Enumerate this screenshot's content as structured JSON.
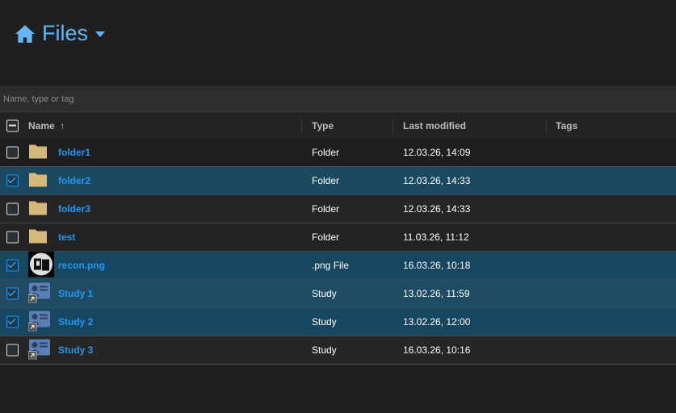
{
  "header": {
    "title": "Files",
    "icon": "home-icon"
  },
  "search": {
    "placeholder": "Name, type or tag"
  },
  "columns": {
    "name": "Name",
    "sort": "↑",
    "type": "Type",
    "modified": "Last modified",
    "tags": "Tags"
  },
  "rows": [
    {
      "name": "folder1",
      "type": "Folder",
      "modified": "12.03.26, 14:09",
      "icon": "folder",
      "selected": false
    },
    {
      "name": "folder2",
      "type": "Folder",
      "modified": "12.03.26, 14:33",
      "icon": "folder",
      "selected": true
    },
    {
      "name": "folder3",
      "type": "Folder",
      "modified": "12.03.26, 14:33",
      "icon": "folder",
      "selected": false
    },
    {
      "name": "test",
      "type": "Folder",
      "modified": "11.03.26, 11:12",
      "icon": "folder",
      "selected": false
    },
    {
      "name": "recon.png",
      "type": ".png File",
      "modified": "16.03.26, 10:18",
      "icon": "image",
      "selected": true
    },
    {
      "name": "Study 1",
      "type": "Study",
      "modified": "13.02.26, 11:59",
      "icon": "study",
      "selected": true
    },
    {
      "name": "Study 2",
      "type": "Study",
      "modified": "13.02.26, 12:00",
      "icon": "study",
      "selected": true
    },
    {
      "name": "Study 3",
      "type": "Study",
      "modified": "16.03.26, 10:16",
      "icon": "study",
      "selected": false
    }
  ],
  "colors": {
    "accent": "#2196f3",
    "selected_row": "#1b4a60",
    "folder": "#d4b97a"
  }
}
